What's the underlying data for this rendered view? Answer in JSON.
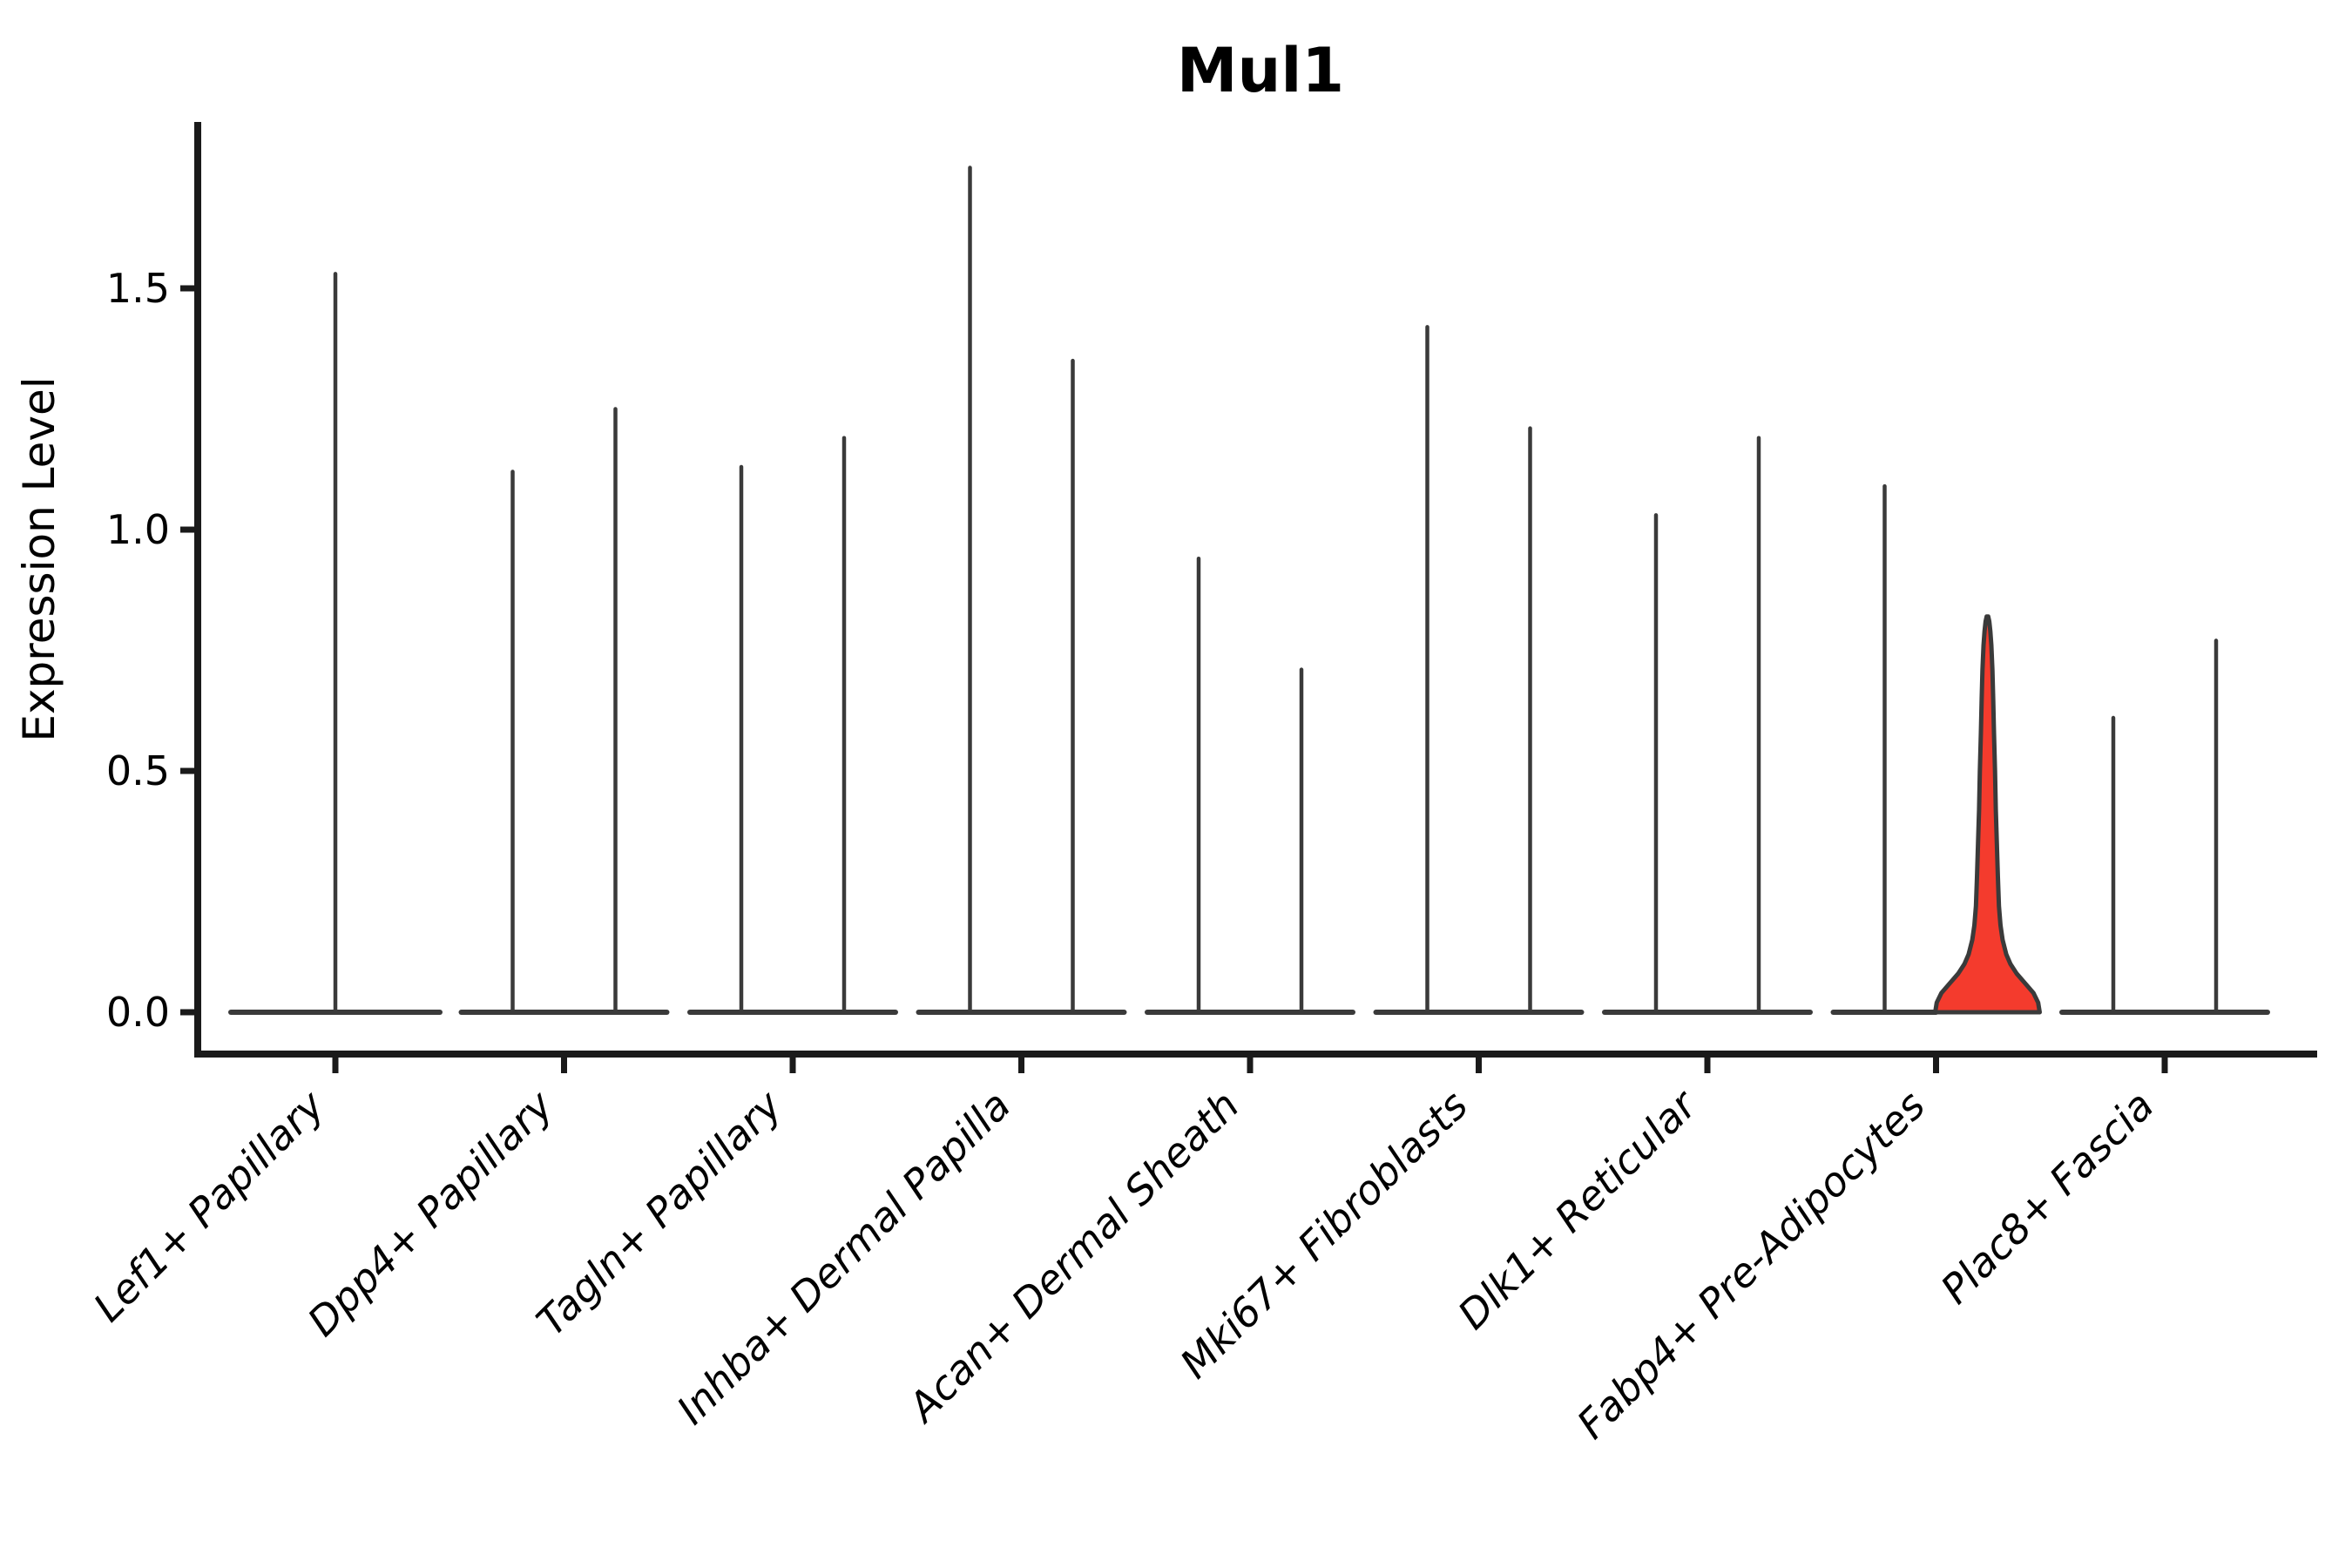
{
  "figure": {
    "background": "#ffffff"
  },
  "chart_data": {
    "type": "violin",
    "title": "Mul1",
    "xlabel": "",
    "ylabel": "Expression Level",
    "yticks": [
      0.0,
      0.5,
      1.0,
      1.5
    ],
    "ylim": [
      -0.09,
      1.85
    ],
    "grid": false,
    "legend": "none",
    "x_tick_label_style": "italic, rotated 45 degrees",
    "categories": [
      "Lef1+ Papillary",
      "Dpp4+ Papillary",
      "Tagln+ Papillary",
      "Inhba+ Dermal Papilla",
      "Acan+ Dermal Sheath",
      "Mki67+ Fibroblasts",
      "Dlk1+ Reticular",
      "Fabp4+ Pre-Adipocytes",
      "Plac8+ Fascia"
    ],
    "violins_per_category": [
      1,
      2,
      2,
      2,
      2,
      2,
      2,
      2,
      2
    ],
    "max_expression": [
      [
        1.53
      ],
      [
        1.12,
        1.25
      ],
      [
        1.13,
        1.19
      ],
      [
        1.75,
        1.35
      ],
      [
        0.94,
        0.71
      ],
      [
        1.42,
        1.21
      ],
      [
        1.03,
        1.19
      ],
      [
        1.09,
        0.82
      ],
      [
        0.61,
        0.77
      ]
    ],
    "baseline_value": 0.0,
    "highlighted_violin": {
      "category": "Fabp4+ Pre-Adipocytes",
      "index_in_category": 1,
      "max": 0.82,
      "fill_color": "#f43b2d",
      "profile": [
        [
          0.0,
          1.0
        ],
        [
          0.02,
          0.97
        ],
        [
          0.04,
          0.88
        ],
        [
          0.06,
          0.72
        ],
        [
          0.08,
          0.56
        ],
        [
          0.1,
          0.44
        ],
        [
          0.12,
          0.36
        ],
        [
          0.15,
          0.29
        ],
        [
          0.18,
          0.25
        ],
        [
          0.22,
          0.22
        ],
        [
          0.28,
          0.2
        ],
        [
          0.35,
          0.18
        ],
        [
          0.42,
          0.16
        ],
        [
          0.5,
          0.145
        ],
        [
          0.58,
          0.125
        ],
        [
          0.65,
          0.11
        ],
        [
          0.71,
          0.095
        ],
        [
          0.76,
          0.075
        ],
        [
          0.79,
          0.055
        ],
        [
          0.81,
          0.035
        ],
        [
          0.82,
          0.015
        ]
      ]
    },
    "colors": {
      "outline": "#3a3a3a",
      "axis": "#1a1a1a",
      "text": "#000000",
      "highlight_fill": "#f43b2d",
      "background": "#ffffff"
    }
  }
}
